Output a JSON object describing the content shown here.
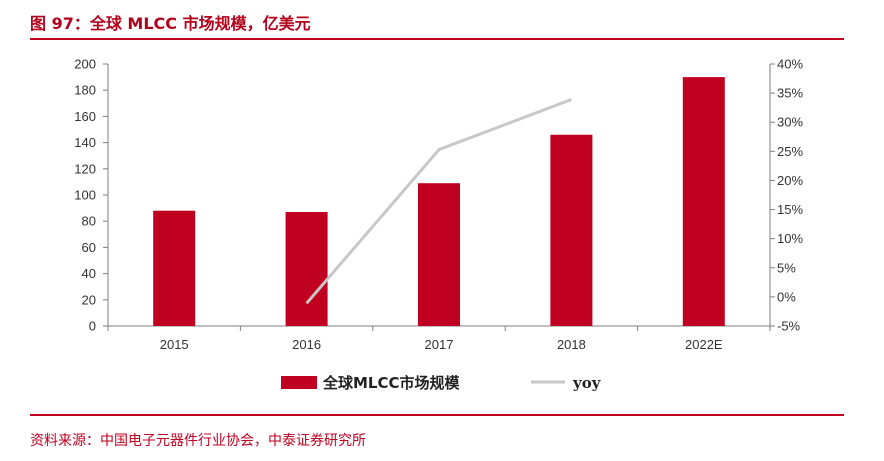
{
  "header": {
    "title": "图 97：全球 MLCC 市场规模，亿美元"
  },
  "footer": {
    "source": "资料来源：中国电子元器件行业协会，中泰证券研究所"
  },
  "colors": {
    "bar": "#c00020",
    "line": "#c8c8c8",
    "accent": "#b3001b"
  },
  "chart_data": {
    "type": "bar",
    "categories": [
      "2015",
      "2016",
      "2017",
      "2018",
      "2022E"
    ],
    "series": [
      {
        "name": "全球MLCC市场规模",
        "type": "bar",
        "axis": "left",
        "values": [
          88,
          87,
          109,
          146,
          190
        ]
      },
      {
        "name": "yoy",
        "type": "line",
        "axis": "right",
        "values": [
          null,
          -1.1,
          25.3,
          33.9,
          null
        ]
      }
    ],
    "ylim": [
      0,
      200
    ],
    "y2lim": [
      -5,
      40
    ],
    "y_ticks": [
      "0",
      "20",
      "40",
      "60",
      "80",
      "100",
      "120",
      "140",
      "160",
      "180",
      "200"
    ],
    "y2_ticks": [
      "-5%",
      "0%",
      "5%",
      "10%",
      "15%",
      "20%",
      "25%",
      "30%",
      "35%",
      "40%"
    ],
    "legend_position": "bottom"
  }
}
